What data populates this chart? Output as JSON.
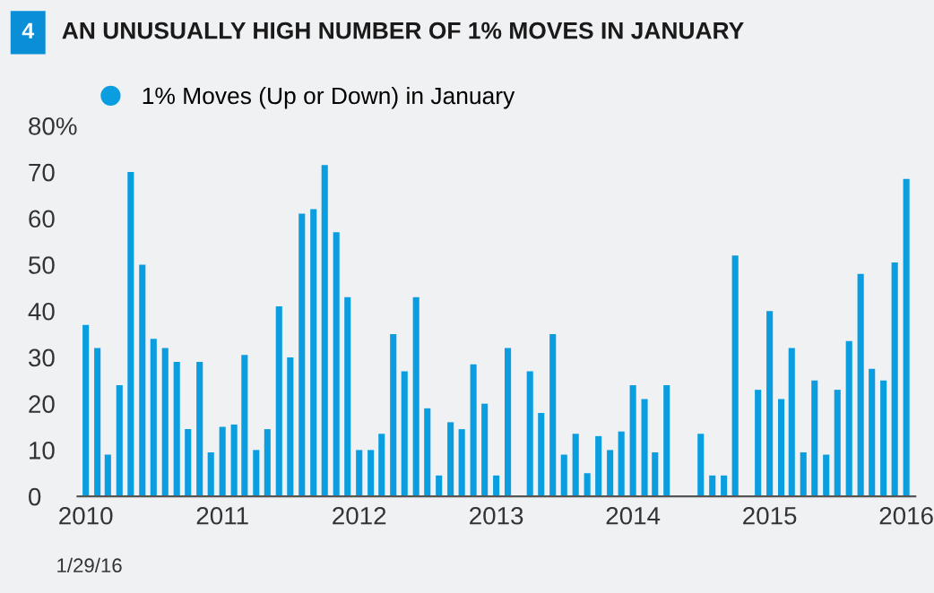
{
  "chart_data": {
    "type": "bar",
    "title": "AN UNUSUALLY HIGH NUMBER OF 1% MOVES IN JANUARY",
    "annotations": [
      "4",
      "1/29/16"
    ],
    "x": [
      "2010-01",
      "2010-02",
      "2010-03",
      "2010-04",
      "2010-05",
      "2010-06",
      "2010-07",
      "2010-08",
      "2010-09",
      "2010-10",
      "2010-11",
      "2010-12",
      "2011-01",
      "2011-02",
      "2011-03",
      "2011-04",
      "2011-05",
      "2011-06",
      "2011-07",
      "2011-08",
      "2011-09",
      "2011-10",
      "2011-11",
      "2011-12",
      "2012-01",
      "2012-02",
      "2012-03",
      "2012-04",
      "2012-05",
      "2012-06",
      "2012-07",
      "2012-08",
      "2012-09",
      "2012-10",
      "2012-11",
      "2012-12",
      "2013-01",
      "2013-02",
      "2013-03",
      "2013-04",
      "2013-05",
      "2013-06",
      "2013-07",
      "2013-08",
      "2013-09",
      "2013-10",
      "2013-11",
      "2013-12",
      "2014-01",
      "2014-02",
      "2014-03",
      "2014-04",
      "2014-05",
      "2014-06",
      "2014-07",
      "2014-08",
      "2014-09",
      "2014-10",
      "2014-11",
      "2014-12",
      "2015-01",
      "2015-02",
      "2015-03",
      "2015-04",
      "2015-05",
      "2015-06",
      "2015-07",
      "2015-08",
      "2015-09",
      "2015-10",
      "2015-11",
      "2015-12",
      "2016-01"
    ],
    "series": [
      {
        "name": "1% Moves (Up or Down) in January",
        "color": "#0a9ee0",
        "values": [
          37,
          32,
          9,
          24,
          70,
          50,
          34,
          32,
          29,
          14.5,
          29,
          9.5,
          15,
          15.5,
          30.5,
          10,
          14.5,
          41,
          30,
          61,
          62,
          71.5,
          57,
          43,
          10,
          10,
          13.5,
          35,
          27,
          43,
          19,
          4.5,
          16,
          14.5,
          28.5,
          20,
          4.5,
          32,
          0,
          27,
          18,
          35,
          9,
          13.5,
          5,
          13,
          10,
          14,
          24,
          21,
          9.5,
          24,
          0,
          0,
          13.5,
          4.5,
          4.5,
          52,
          0,
          23,
          40,
          21,
          32,
          9.5,
          25,
          9,
          23,
          33.5,
          48,
          27.5,
          25,
          50.5,
          68.5
        ]
      }
    ],
    "xlim": [
      "2009-12-10",
      "2016-01-25"
    ],
    "xticks": [
      {
        "value": "2010-01",
        "label": "2010"
      },
      {
        "value": "2011-01",
        "label": "2011"
      },
      {
        "value": "2012-01",
        "label": "2012"
      },
      {
        "value": "2013-01",
        "label": "2013"
      },
      {
        "value": "2014-01",
        "label": "2014"
      },
      {
        "value": "2015-01",
        "label": "2015"
      },
      {
        "value": "2016-01",
        "label": "2016"
      }
    ],
    "ylim": [
      0,
      80
    ],
    "yticks": [
      0,
      10,
      20,
      30,
      40,
      50,
      60,
      70,
      {
        "value": 80,
        "label": "80%"
      }
    ],
    "grid": false,
    "legend": "top left"
  }
}
